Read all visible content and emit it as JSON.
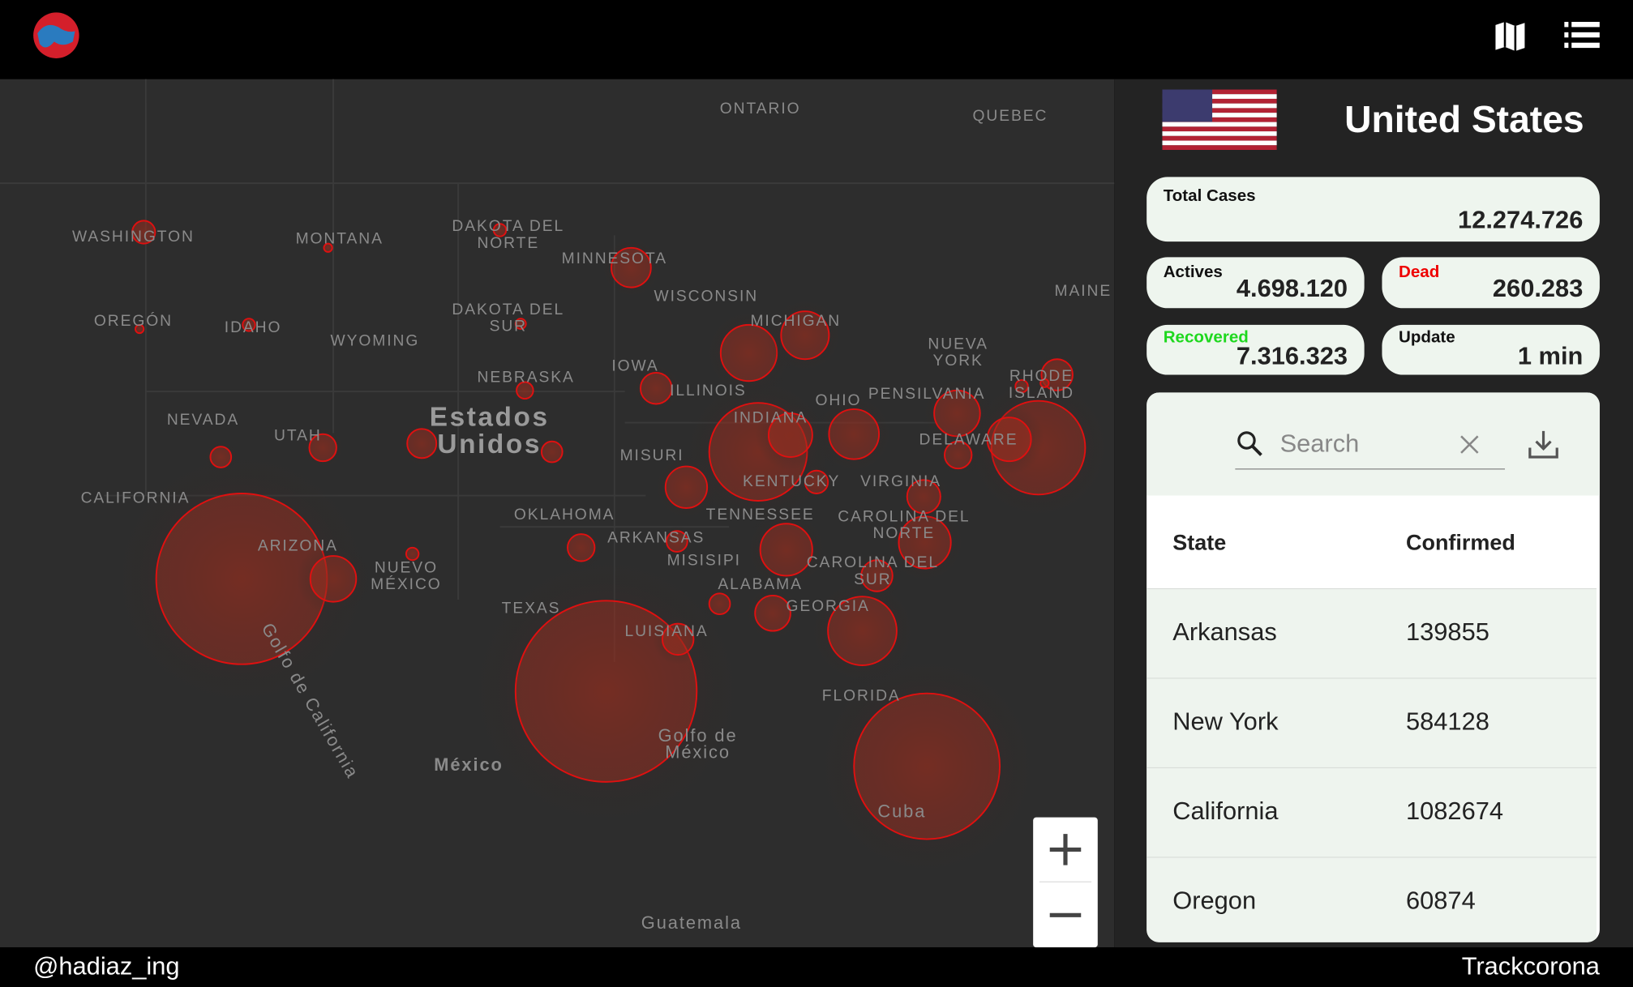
{
  "header": {
    "brand_icon": "globe"
  },
  "map": {
    "labels": [
      "ONTARIO",
      "QUEBEC",
      "WASHINGTON",
      "MONTANA",
      "DAKOTA DEL NORTE",
      "MINNESOTA",
      "MAINE",
      "OREGÓN",
      "IDAHO",
      "WYOMING",
      "DAKOTA DEL SUR",
      "WISCONSIN",
      "MICHIGAN",
      "NUEVA YORK",
      "IOWA",
      "NEBRASKA",
      "ILLINOIS",
      "OHIO",
      "PENSILVANIA",
      "RHODE ISLAND",
      "NEVADA",
      "UTAH",
      "Estados Unidos",
      "INDIANA",
      "DELAWARE",
      "MISURI",
      "KENTUCKY",
      "VIRGINIA",
      "CALIFORNIA",
      "OKLAHOMA",
      "TENNESSEE",
      "CAROLINA DEL NORTE",
      "ARIZONA",
      "NUEVO MÉXICO",
      "ARKANSAS",
      "MISISIPI",
      "CAROLINA DEL SUR",
      "ALABAMA",
      "TEXAS",
      "GEORGIA",
      "LUISIANA",
      "Golfo de California",
      "Golfo de México",
      "FLORIDA",
      "México",
      "Cuba",
      "Guatemala"
    ]
  },
  "panel": {
    "country": "United States",
    "stats": {
      "total_label": "Total Cases",
      "total": "12.274.726",
      "actives_label": "Actives",
      "actives": "4.698.120",
      "dead_label": "Dead",
      "dead": "260.283",
      "recovered_label": "Recovered",
      "recovered": "7.316.323",
      "update_label": "Update",
      "update": "1 min"
    },
    "search_placeholder": "Search",
    "table": {
      "columns": [
        "State",
        "Confirmed"
      ],
      "rows": [
        [
          "Arkansas",
          "139855"
        ],
        [
          "New York",
          "584128"
        ],
        [
          "California",
          "1082674"
        ],
        [
          "Oregon",
          "60874"
        ]
      ]
    }
  },
  "footer": {
    "left": "@hadiaz_ing",
    "right": "Trackcorona"
  }
}
